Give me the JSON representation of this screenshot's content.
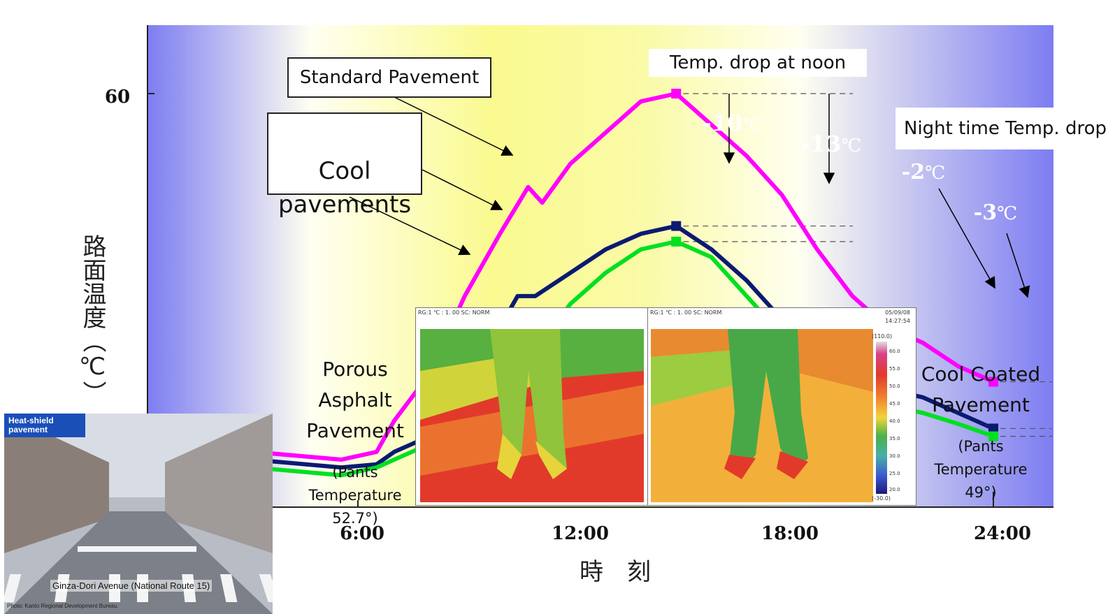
{
  "chart_data": {
    "type": "line",
    "title": "",
    "xlabel": "時　刻",
    "ylabel": "路面温度（℃）",
    "x": [
      "6:00",
      "12:00",
      "18:00",
      "24:00"
    ],
    "y_ticks": [
      "60"
    ],
    "series": [
      {
        "name": "Standard Pavement",
        "color": "#ff00ff",
        "points": [
          [
            0,
            37.5
          ],
          [
            3,
            37.0
          ],
          [
            5.5,
            36.5
          ],
          [
            6.5,
            37.0
          ],
          [
            7,
            39
          ],
          [
            8,
            42
          ],
          [
            9,
            47
          ],
          [
            10,
            51
          ],
          [
            10.8,
            54
          ],
          [
            11.2,
            53
          ],
          [
            12,
            55.5
          ],
          [
            13,
            57.5
          ],
          [
            14,
            59.5
          ],
          [
            15,
            60
          ],
          [
            16,
            58
          ],
          [
            17,
            56
          ],
          [
            18,
            53.5
          ],
          [
            19,
            50
          ],
          [
            20,
            47
          ],
          [
            21,
            45
          ],
          [
            22,
            44
          ],
          [
            23,
            42.5
          ],
          [
            24,
            41.5
          ]
        ]
      },
      {
        "name": "Cool pavements",
        "color": "#0b1a72",
        "points": [
          [
            0,
            37.0
          ],
          [
            3,
            36.5
          ],
          [
            5.5,
            36.0
          ],
          [
            6.5,
            36.2
          ],
          [
            7,
            37
          ],
          [
            8,
            38
          ],
          [
            9,
            41
          ],
          [
            10,
            45
          ],
          [
            10.5,
            47
          ],
          [
            11,
            47
          ],
          [
            12,
            48.5
          ],
          [
            13,
            50
          ],
          [
            14,
            51
          ],
          [
            15,
            51.5
          ],
          [
            16,
            50
          ],
          [
            17,
            48
          ],
          [
            18,
            45.5
          ],
          [
            19,
            43.5
          ],
          [
            20,
            42
          ],
          [
            21,
            41
          ],
          [
            22,
            40.5
          ],
          [
            23,
            39.5
          ],
          [
            24,
            38.5
          ]
        ]
      },
      {
        "name": "Cool Coated Pavement",
        "color": "#00e020",
        "points": [
          [
            0,
            36.5
          ],
          [
            3,
            36.0
          ],
          [
            5.5,
            35.5
          ],
          [
            6.5,
            36.0
          ],
          [
            7,
            36.5
          ],
          [
            8,
            37.5
          ],
          [
            9,
            40
          ],
          [
            10,
            43
          ],
          [
            10.8,
            45
          ],
          [
            11.5,
            45
          ],
          [
            12,
            46.5
          ],
          [
            13,
            48.5
          ],
          [
            14,
            50
          ],
          [
            15,
            50.5
          ],
          [
            16,
            49.5
          ],
          [
            17,
            47
          ],
          [
            18,
            44.5
          ],
          [
            19,
            42.5
          ],
          [
            20,
            41
          ],
          [
            21,
            40
          ],
          [
            22,
            39.5
          ],
          [
            23,
            38.8
          ],
          [
            24,
            38.0
          ]
        ]
      }
    ],
    "labels": {
      "standard": "Standard Pavement",
      "cool": "Cool\npavements",
      "noon_drop": "Temp. drop at noon",
      "night_drop": "Night time Temp. drop",
      "porous": "Porous\nAsphalt\nPavement",
      "porous_note": "(Pants\nTemperature\n52.7°)",
      "coated": "Cool Coated\nPavement",
      "coated_note": "(Pants\nTemperature\n49°)"
    },
    "annotations": [
      {
        "text": "-10",
        "unit": "℃",
        "color": "#0b3a8c"
      },
      {
        "text": "-13",
        "unit": "℃",
        "color": "#0b3a8c"
      },
      {
        "text": "-2",
        "unit": "℃",
        "color": "#0a8a2a"
      },
      {
        "text": "-3",
        "unit": "℃",
        "color": "#0a8a2a"
      }
    ]
  },
  "thermal_images": {
    "left_header": "RG:1 ℃ : 1. 00 SC: NORM",
    "right_header": "RG:1 ℃ : 1. 00 SC: NORM",
    "date": "05/09/08",
    "time": "14:27:54",
    "scale_top": "(110.0)",
    "scale_bottom": "(-30.0)",
    "scale_ticks": [
      "60.0",
      "55.0",
      "50.0",
      "45.0",
      "40.0",
      "35.0",
      "30.0",
      "25.0",
      "20.0"
    ]
  },
  "photo": {
    "tag": "Heat-shield\npavement",
    "caption": "Ginza-Dori Avenue (National Route 15)",
    "credit": "Photo: Kanto Regional Development Bureau."
  }
}
